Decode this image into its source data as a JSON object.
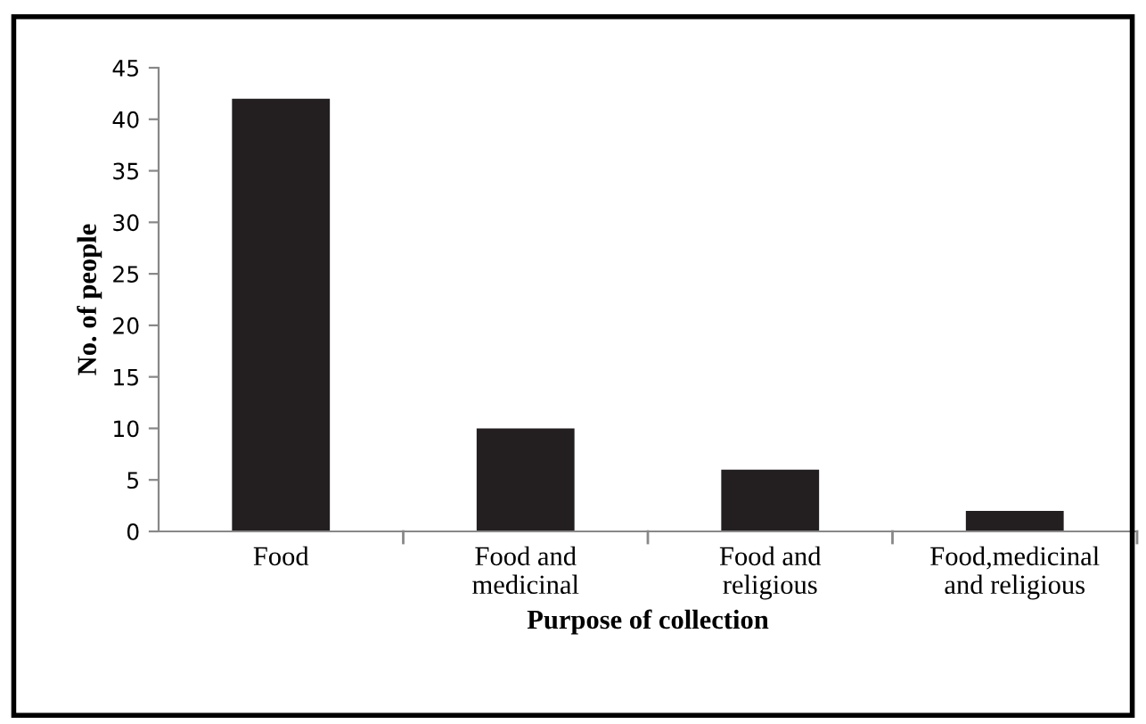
{
  "chart_data": {
    "type": "bar",
    "xlabel": "Purpose of collection",
    "ylabel": "No. of people",
    "categories": [
      "Food",
      "Food and\nmedicinal",
      "Food and\nreligious",
      "Food,medicinal\nand religious"
    ],
    "values": [
      42,
      10,
      6,
      2
    ],
    "color": "#231f20",
    "ylim": [
      0,
      45
    ],
    "yticks": [
      0,
      5,
      10,
      15,
      20,
      25,
      30,
      35,
      40,
      45
    ],
    "grid": false,
    "legend": false
  }
}
